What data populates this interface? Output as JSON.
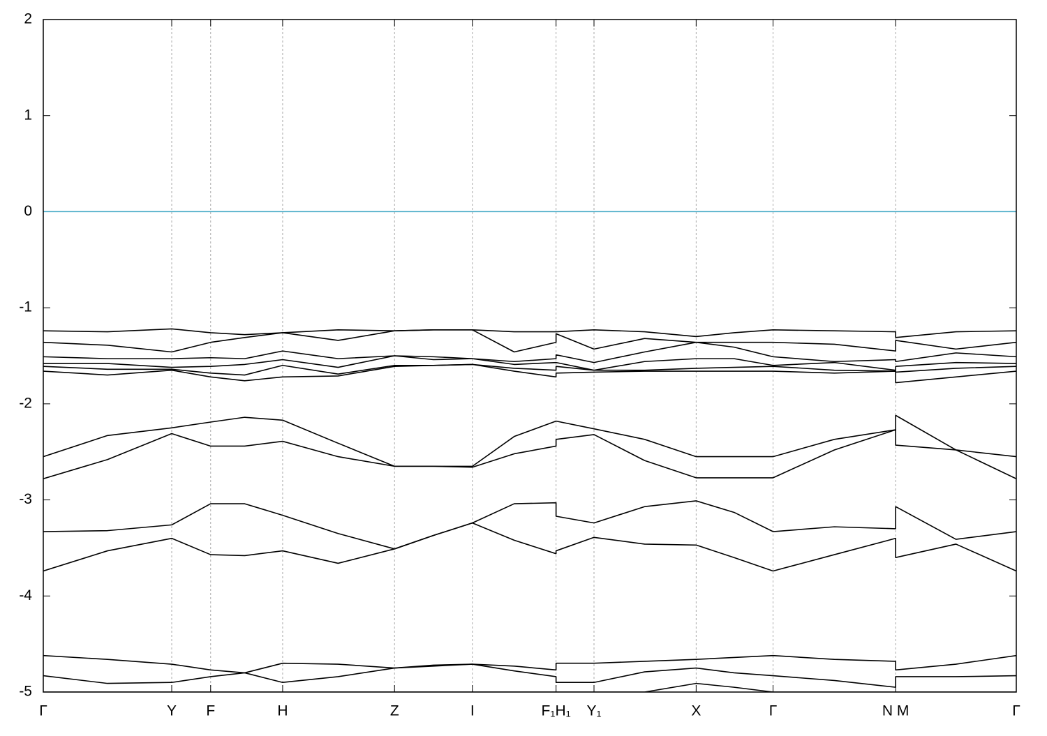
{
  "chart_data": {
    "type": "line",
    "x": [
      0,
      0.066,
      0.132,
      0.172,
      0.207,
      0.246,
      0.303,
      0.361,
      0.401,
      0.441,
      0.484,
      0.527,
      0.527,
      0.566,
      0.618,
      0.671,
      0.71,
      0.75,
      0.813,
      0.876,
      0.876,
      0.938,
      1.0
    ],
    "xlim": [
      0,
      1
    ],
    "xticks": [
      {
        "value": 0,
        "label": "Γ"
      },
      {
        "value": 0.132,
        "label": "Y"
      },
      {
        "value": 0.172,
        "label": "F"
      },
      {
        "value": 0.246,
        "label": "H"
      },
      {
        "value": 0.361,
        "label": "Z"
      },
      {
        "value": 0.441,
        "label": "I"
      },
      {
        "value": 0.527,
        "label": "F₁H₁"
      },
      {
        "value": 0.566,
        "label": "Y₁"
      },
      {
        "value": 0.671,
        "label": "X"
      },
      {
        "value": 0.75,
        "label": "Γ"
      },
      {
        "value": 0.876,
        "label": "N M"
      },
      {
        "value": 1.0,
        "label": "Γ"
      }
    ],
    "ylim": [
      -5,
      2
    ],
    "yticks": [
      -5,
      -4,
      -3,
      -2,
      -1,
      0,
      1,
      2
    ],
    "grid": true,
    "reference_line": {
      "value": 0,
      "color": "#3ea6c4"
    },
    "series": [
      {
        "color": "#000000",
        "values": [
          -1.24,
          -1.25,
          -1.22,
          -1.26,
          -1.28,
          -1.26,
          -1.23,
          -1.24,
          -1.23,
          -1.23,
          -1.25,
          -1.25,
          -1.25,
          -1.23,
          -1.25,
          -1.3,
          -1.26,
          -1.23,
          -1.24,
          -1.25,
          -1.31,
          -1.25,
          -1.24
        ]
      },
      {
        "color": "#000000",
        "values": [
          -1.36,
          -1.39,
          -1.46,
          -1.36,
          -1.31,
          -1.26,
          -1.34,
          -1.24,
          -1.23,
          -1.23,
          -1.46,
          -1.36,
          -1.27,
          -1.43,
          -1.32,
          -1.36,
          -1.36,
          -1.36,
          -1.38,
          -1.45,
          -1.34,
          -1.43,
          -1.36
        ]
      },
      {
        "color": "#000000",
        "values": [
          -1.51,
          -1.53,
          -1.53,
          -1.52,
          -1.53,
          -1.45,
          -1.53,
          -1.5,
          -1.51,
          -1.53,
          -1.56,
          -1.53,
          -1.49,
          -1.57,
          -1.46,
          -1.36,
          -1.41,
          -1.51,
          -1.56,
          -1.54,
          -1.56,
          -1.47,
          -1.51
        ]
      },
      {
        "color": "#000000",
        "values": [
          -1.58,
          -1.58,
          -1.62,
          -1.61,
          -1.59,
          -1.54,
          -1.62,
          -1.5,
          -1.54,
          -1.53,
          -1.59,
          -1.57,
          -1.57,
          -1.65,
          -1.56,
          -1.53,
          -1.53,
          -1.6,
          -1.57,
          -1.65,
          -1.61,
          -1.57,
          -1.58
        ]
      },
      {
        "color": "#000000",
        "values": [
          -1.61,
          -1.64,
          -1.64,
          -1.68,
          -1.7,
          -1.6,
          -1.69,
          -1.6,
          -1.6,
          -1.59,
          -1.63,
          -1.65,
          -1.61,
          -1.65,
          -1.65,
          -1.63,
          -1.62,
          -1.61,
          -1.65,
          -1.66,
          -1.67,
          -1.63,
          -1.61
        ]
      },
      {
        "color": "#000000",
        "values": [
          -1.66,
          -1.7,
          -1.65,
          -1.72,
          -1.76,
          -1.72,
          -1.71,
          -1.61,
          -1.6,
          -1.59,
          -1.66,
          -1.72,
          -1.68,
          -1.67,
          -1.66,
          -1.66,
          -1.66,
          -1.66,
          -1.68,
          -1.66,
          -1.78,
          -1.72,
          -1.66
        ]
      },
      {
        "color": "#000000",
        "values": [
          -2.55,
          -2.33,
          -2.25,
          -2.19,
          -2.14,
          -2.17,
          -2.41,
          -2.65,
          -2.65,
          -2.65,
          -2.34,
          -2.18,
          -2.18,
          -2.26,
          -2.37,
          -2.55,
          -2.55,
          -2.55,
          -2.37,
          -2.27,
          -2.12,
          -2.48,
          -2.55
        ]
      },
      {
        "color": "#000000",
        "values": [
          -2.78,
          -2.58,
          -2.31,
          -2.44,
          -2.44,
          -2.39,
          -2.55,
          -2.65,
          -2.65,
          -2.66,
          -2.52,
          -2.44,
          -2.37,
          -2.32,
          -2.59,
          -2.77,
          -2.77,
          -2.77,
          -2.48,
          -2.27,
          -2.43,
          -2.48,
          -2.78
        ]
      },
      {
        "color": "#000000",
        "values": [
          -3.33,
          -3.32,
          -3.26,
          -3.04,
          -3.04,
          -3.16,
          -3.35,
          -3.51,
          -3.37,
          -3.24,
          -3.04,
          -3.03,
          -3.17,
          -3.24,
          -3.07,
          -3.01,
          -3.13,
          -3.33,
          -3.28,
          -3.3,
          -3.07,
          -3.41,
          -3.33
        ]
      },
      {
        "color": "#000000",
        "values": [
          -3.74,
          -3.53,
          -3.4,
          -3.57,
          -3.58,
          -3.53,
          -3.66,
          -3.51,
          -3.37,
          -3.24,
          -3.42,
          -3.56,
          -3.53,
          -3.39,
          -3.46,
          -3.47,
          -3.6,
          -3.74,
          -3.57,
          -3.4,
          -3.6,
          -3.46,
          -3.74
        ]
      },
      {
        "color": "#000000",
        "values": [
          -4.62,
          -4.66,
          -4.71,
          -4.77,
          -4.8,
          -4.7,
          -4.71,
          -4.75,
          -4.72,
          -4.71,
          -4.73,
          -4.77,
          -4.7,
          -4.7,
          -4.68,
          -4.66,
          -4.64,
          -4.62,
          -4.66,
          -4.68,
          -4.77,
          -4.71,
          -4.62
        ]
      },
      {
        "color": "#000000",
        "values": [
          -4.83,
          -4.91,
          -4.9,
          -4.84,
          -4.8,
          -4.9,
          -4.84,
          -4.75,
          -4.73,
          -4.71,
          -4.78,
          -4.84,
          -4.9,
          -4.9,
          -4.79,
          -4.75,
          -4.8,
          -4.83,
          -4.88,
          -4.95,
          -4.84,
          -4.84,
          -4.83
        ]
      },
      {
        "color": "#000000",
        "values": [
          -5.0,
          -5.0,
          -5.0,
          -5.0,
          -5.0,
          -5.0,
          -5.0,
          -5.0,
          -5.0,
          -5.0,
          -5.0,
          -5.0,
          -5.0,
          -5.0,
          -5.0,
          -4.91,
          -4.95,
          -5.0,
          -5.0,
          -5.0,
          -5.0,
          -5.0,
          -5.0
        ]
      }
    ]
  }
}
